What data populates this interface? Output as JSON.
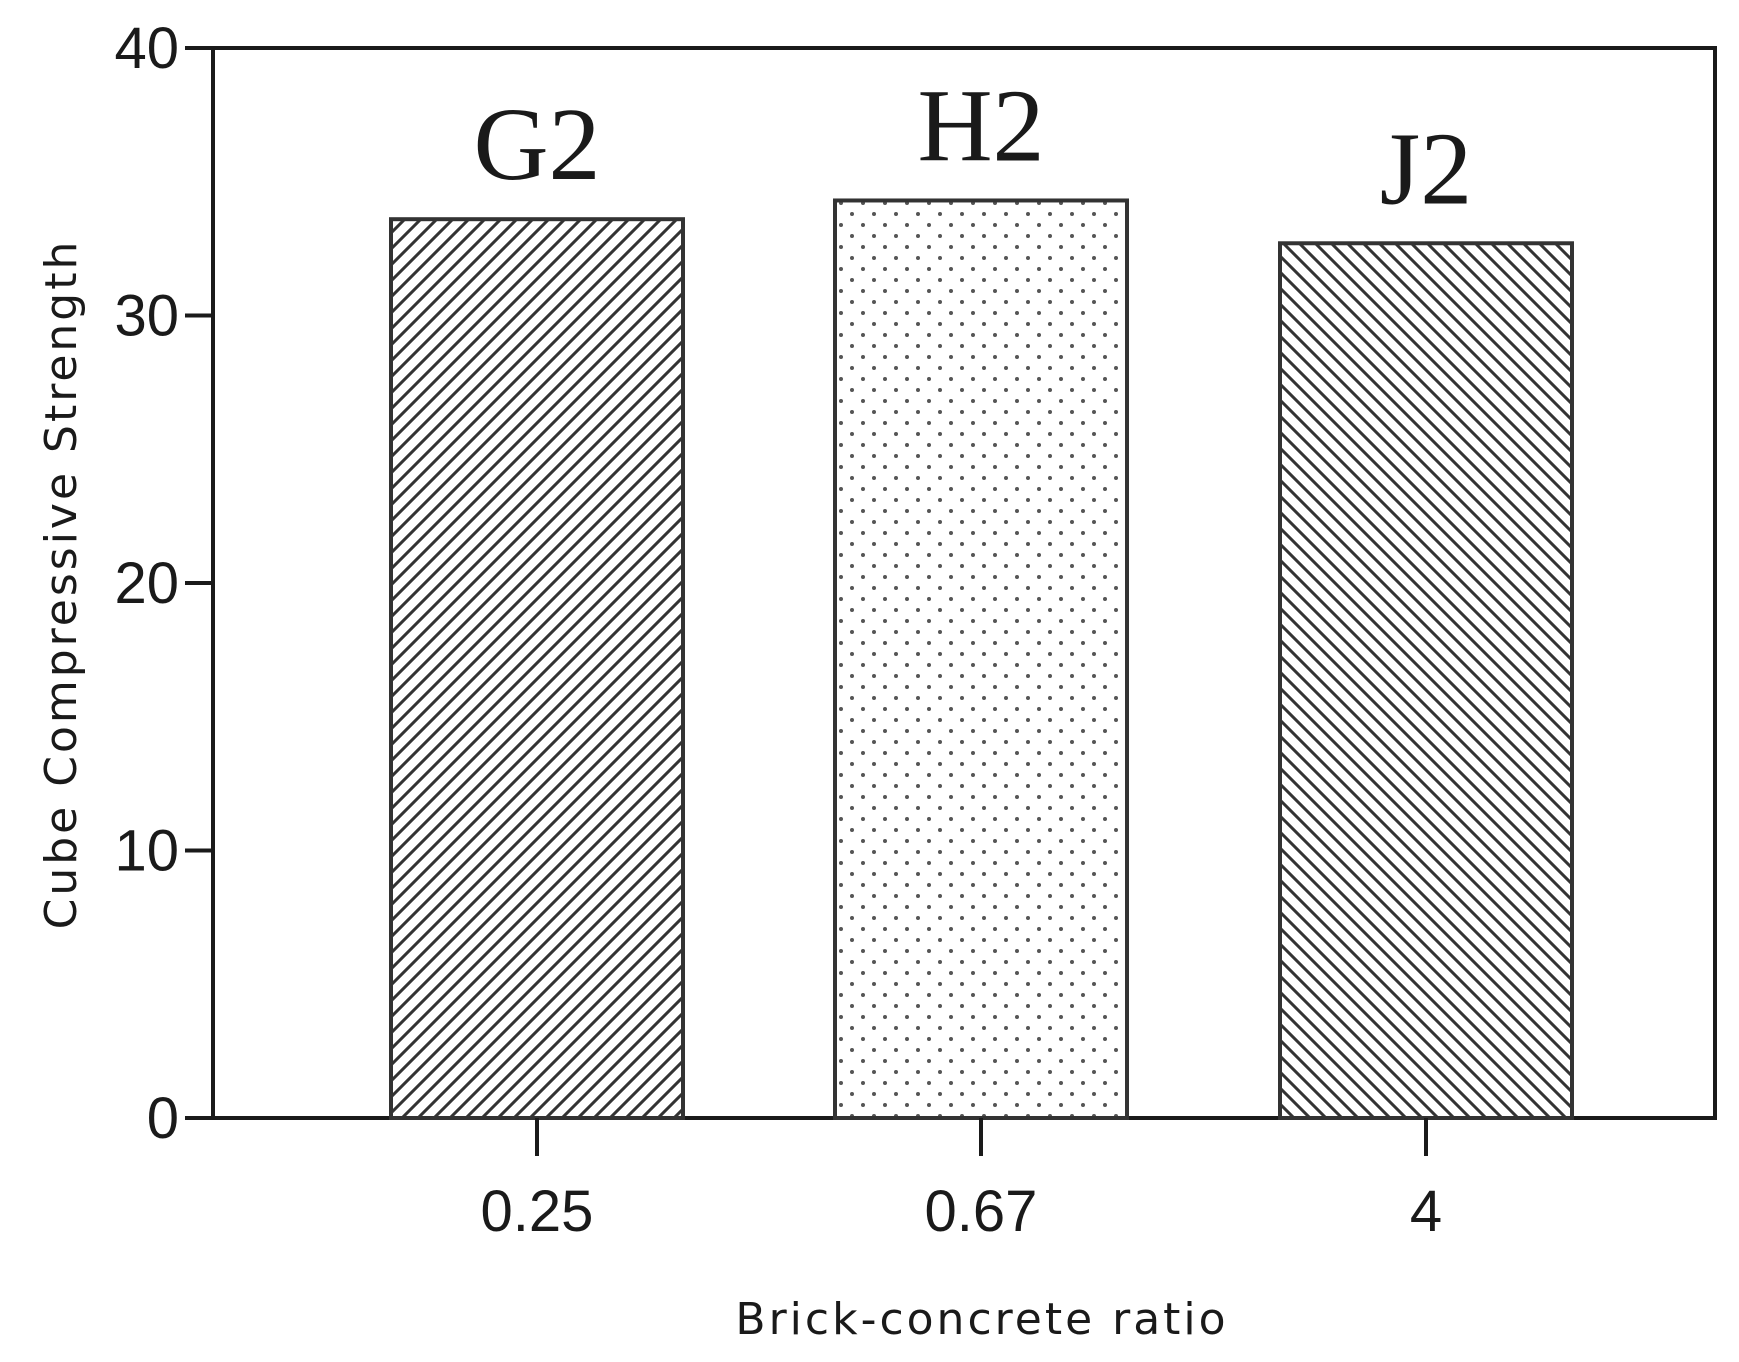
{
  "chart_data": {
    "type": "bar",
    "title": "",
    "xlabel": "Brick-concrete ratio",
    "ylabel": "Cube Compressive Strength",
    "categories": [
      "0.25",
      "0.67",
      "4"
    ],
    "values": [
      33.6,
      34.3,
      32.7
    ],
    "bar_labels": [
      "G2",
      "H2",
      "J2"
    ],
    "bar_patterns": [
      "diagonal-up",
      "dots",
      "diagonal-down"
    ],
    "ylim": [
      0,
      40
    ],
    "yticks": [
      0,
      10,
      20,
      30,
      40
    ],
    "ytick_labels": [
      "0",
      "10",
      "20",
      "30",
      "40"
    ],
    "grid": false,
    "legend": "none",
    "colors": {
      "axis": "#1a1a1a",
      "bar_edge": "#333333",
      "pattern": "#333333",
      "dots": "#555555",
      "background": "#ffffff"
    }
  }
}
